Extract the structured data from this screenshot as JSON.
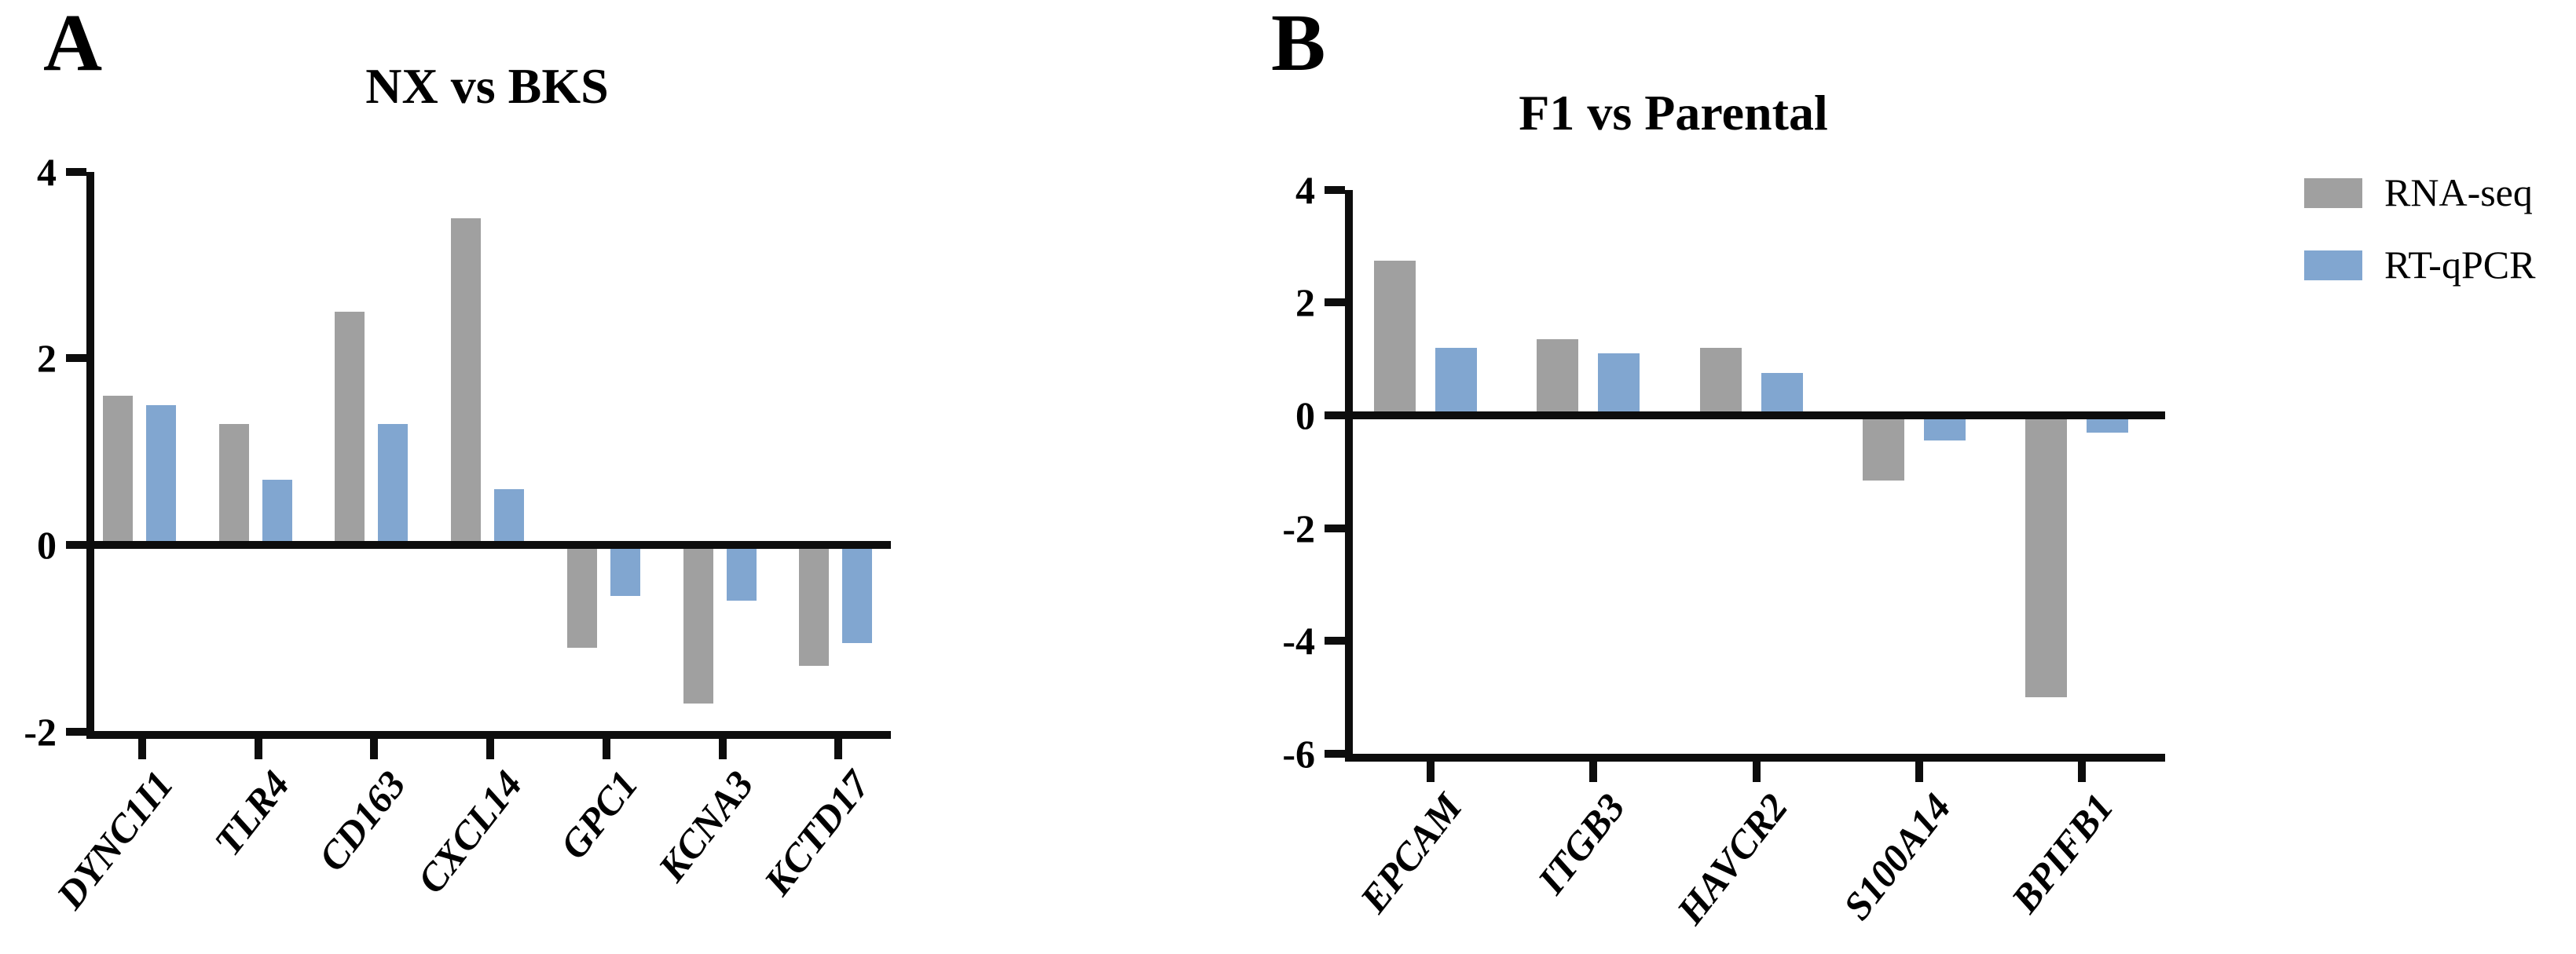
{
  "figure": {
    "background": "#ffffff",
    "panels": [
      {
        "panel_label": "A",
        "title": "NX vs BKS"
      },
      {
        "panel_label": "B",
        "title": "F1 vs Parental"
      }
    ]
  },
  "legend": {
    "position": "top-right-outside",
    "items": [
      {
        "label": "RNA-seq",
        "color": "#a0a0a0"
      },
      {
        "label": "RT-qPCR",
        "color": "#81a6d0"
      }
    ]
  },
  "colors": {
    "rna_seq_gray": "#a0a0a0",
    "rt_qpcr_blue": "#81a6d0",
    "axis_black": "#0d0d0d"
  },
  "chart_data": [
    {
      "type": "bar",
      "panel_label": "A",
      "title": "NX vs BKS",
      "xlabel": "",
      "ylabel": "",
      "grid": false,
      "ylim": [
        -2,
        4
      ],
      "yticks": [
        4,
        2,
        0,
        -2
      ],
      "categories": [
        "DYNC1I1",
        "TLR4",
        "CD163",
        "CXCL14",
        "GPC1",
        "KCNA3",
        "KCTD17"
      ],
      "series": [
        {
          "name": "RNA-seq",
          "color": "#a0a0a0",
          "values": [
            1.6,
            1.3,
            2.5,
            3.5,
            -1.1,
            -1.7,
            -1.3
          ]
        },
        {
          "name": "RT-qPCR",
          "color": "#81a6d0",
          "values": [
            1.5,
            0.7,
            1.3,
            0.6,
            -0.55,
            -0.6,
            -1.05
          ]
        }
      ]
    },
    {
      "type": "bar",
      "panel_label": "B",
      "title": "F1 vs Parental",
      "xlabel": "",
      "ylabel": "",
      "grid": false,
      "ylim": [
        -6,
        4
      ],
      "yticks": [
        4,
        2,
        0,
        -2,
        -4,
        -6
      ],
      "categories": [
        "EPCAM",
        "ITGB3",
        "HAVCR2",
        "S100A14",
        "BPIFB1"
      ],
      "series": [
        {
          "name": "RNA-seq",
          "color": "#a0a0a0",
          "values": [
            2.75,
            1.35,
            1.2,
            -1.15,
            -5.0
          ]
        },
        {
          "name": "RT-qPCR",
          "color": "#81a6d0",
          "values": [
            1.2,
            1.1,
            0.75,
            -0.45,
            -0.3
          ]
        }
      ]
    }
  ]
}
